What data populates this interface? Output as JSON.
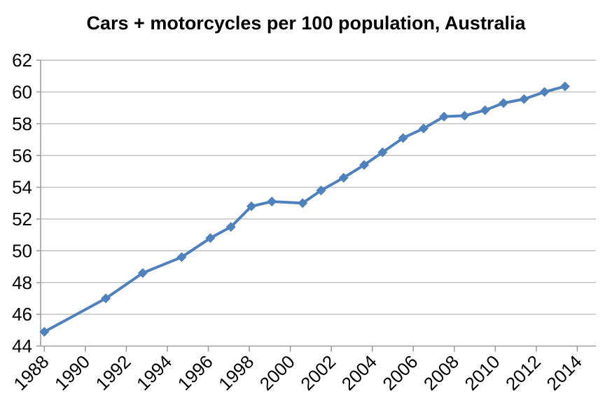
{
  "chart": {
    "title": "Cars + motorcycles per 100 population, Australia"
  },
  "chart_data": {
    "type": "line",
    "title": "Cars + motorcycles per 100 population, Australia",
    "xlabel": "",
    "ylabel": "",
    "legend": "none",
    "grid": "horizontal",
    "xlim": [
      1988,
      2014
    ],
    "ylim": [
      44,
      62
    ],
    "x_ticks": [
      1988,
      1990,
      1992,
      1994,
      1996,
      1998,
      2000,
      2002,
      2004,
      2006,
      2008,
      2010,
      2012,
      2014
    ],
    "y_ticks": [
      62,
      60,
      58,
      56,
      54,
      52,
      50,
      48,
      46,
      44
    ],
    "x_tick_label_rotation_deg": -45,
    "series": [
      {
        "color": "#4F81BD",
        "marker": "diamond",
        "points": [
          {
            "x": 1988.0,
            "y": 44.9
          },
          {
            "x": 1991.0,
            "y": 47.0
          },
          {
            "x": 1992.8,
            "y": 48.6
          },
          {
            "x": 1994.7,
            "y": 49.6
          },
          {
            "x": 1996.1,
            "y": 50.8
          },
          {
            "x": 1997.1,
            "y": 51.5
          },
          {
            "x": 1998.1,
            "y": 52.8
          },
          {
            "x": 1999.1,
            "y": 53.1
          },
          {
            "x": 2000.6,
            "y": 53.0
          },
          {
            "x": 2001.5,
            "y": 53.8
          },
          {
            "x": 2002.6,
            "y": 54.6
          },
          {
            "x": 2003.6,
            "y": 55.4
          },
          {
            "x": 2004.5,
            "y": 56.2
          },
          {
            "x": 2005.5,
            "y": 57.1
          },
          {
            "x": 2006.5,
            "y": 57.7
          },
          {
            "x": 2007.5,
            "y": 58.45
          },
          {
            "x": 2008.5,
            "y": 58.5
          },
          {
            "x": 2009.5,
            "y": 58.85
          },
          {
            "x": 2010.4,
            "y": 59.3
          },
          {
            "x": 2011.4,
            "y": 59.55
          },
          {
            "x": 2012.4,
            "y": 60.0
          },
          {
            "x": 2013.4,
            "y": 60.35
          }
        ]
      }
    ],
    "colors": {
      "series": "#4F81BD",
      "gridline": "#BDBDBD",
      "axis": "#9E9E9E",
      "text": "#000000",
      "background": "#FFFFFF"
    }
  }
}
